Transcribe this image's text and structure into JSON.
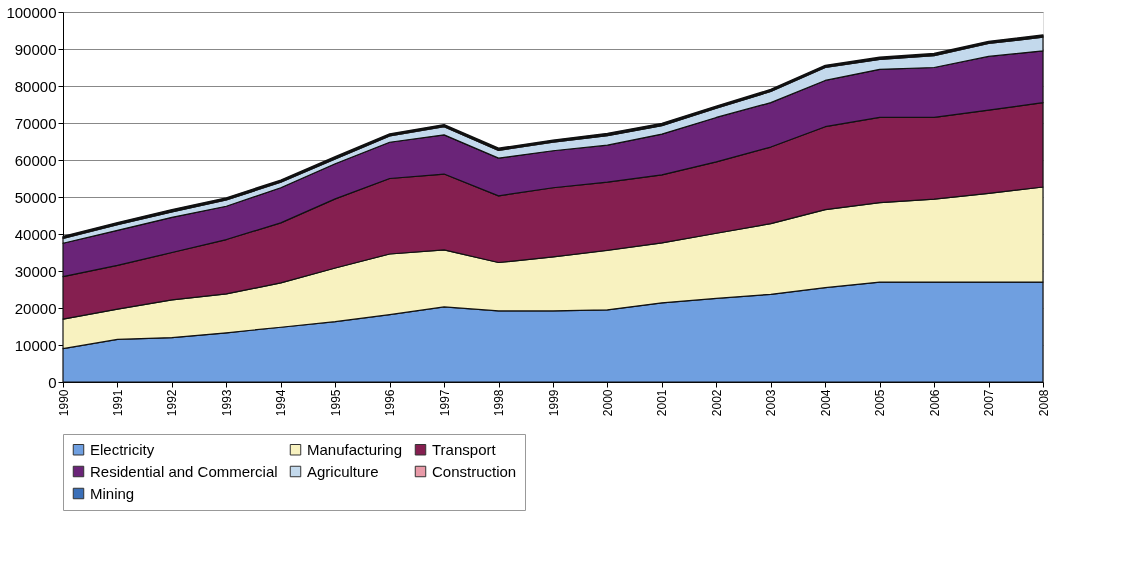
{
  "chart_data": {
    "type": "area",
    "stacked": true,
    "categories": [
      "1990",
      "1991",
      "1992",
      "1993",
      "1994",
      "1995",
      "1996",
      "1997",
      "1998",
      "1999",
      "2000",
      "2001",
      "2002",
      "2003",
      "2004",
      "2005",
      "2006",
      "2007",
      "2008"
    ],
    "series": [
      {
        "name": "Electricity",
        "color": "#6f9fe0",
        "values": [
          9000,
          11500,
          12000,
          13300,
          14800,
          16300,
          18200,
          20300,
          19200,
          19200,
          19500,
          21400,
          22600,
          23700,
          25500,
          27000,
          27000,
          27000,
          27000
        ]
      },
      {
        "name": "Manufacturing",
        "color": "#f8f2c0",
        "values": [
          8000,
          8200,
          10200,
          10500,
          12000,
          14500,
          16400,
          15400,
          13100,
          14600,
          16100,
          16200,
          17600,
          19100,
          21100,
          21500,
          22400,
          24000,
          25700
        ]
      },
      {
        "name": "Transport",
        "color": "#851f50",
        "values": [
          11500,
          11800,
          12800,
          14700,
          16200,
          18700,
          20400,
          20500,
          18000,
          18700,
          18400,
          18400,
          19300,
          20700,
          22400,
          23000,
          22100,
          22500,
          22800
        ]
      },
      {
        "name": "Residential and Commercial",
        "color": "#6a2478",
        "values": [
          9000,
          9500,
          9500,
          9000,
          9500,
          9500,
          9800,
          10600,
          10200,
          10000,
          10000,
          11000,
          12000,
          12000,
          12500,
          13000,
          13500,
          14500,
          14000
        ]
      },
      {
        "name": "Agriculture",
        "color": "#c3d9ec",
        "values": [
          1300,
          1500,
          1500,
          1700,
          1500,
          1300,
          1700,
          2200,
          2100,
          2300,
          2600,
          2300,
          2500,
          3000,
          3500,
          2700,
          3200,
          3500,
          3700
        ]
      },
      {
        "name": "Construction",
        "color": "#e89aa8",
        "values": [
          300,
          300,
          300,
          300,
          300,
          300,
          300,
          300,
          300,
          300,
          300,
          300,
          300,
          300,
          300,
          300,
          300,
          300,
          300
        ]
      },
      {
        "name": "Mining",
        "color": "#3a6fb8",
        "values": [
          300,
          300,
          300,
          300,
          300,
          300,
          300,
          300,
          300,
          300,
          300,
          300,
          300,
          300,
          300,
          300,
          300,
          300,
          300
        ]
      }
    ],
    "ylim": [
      0,
      100000
    ],
    "yticks": [
      0,
      10000,
      20000,
      30000,
      40000,
      50000,
      60000,
      70000,
      80000,
      90000,
      100000
    ],
    "grid": "y",
    "legend": "bottom"
  }
}
